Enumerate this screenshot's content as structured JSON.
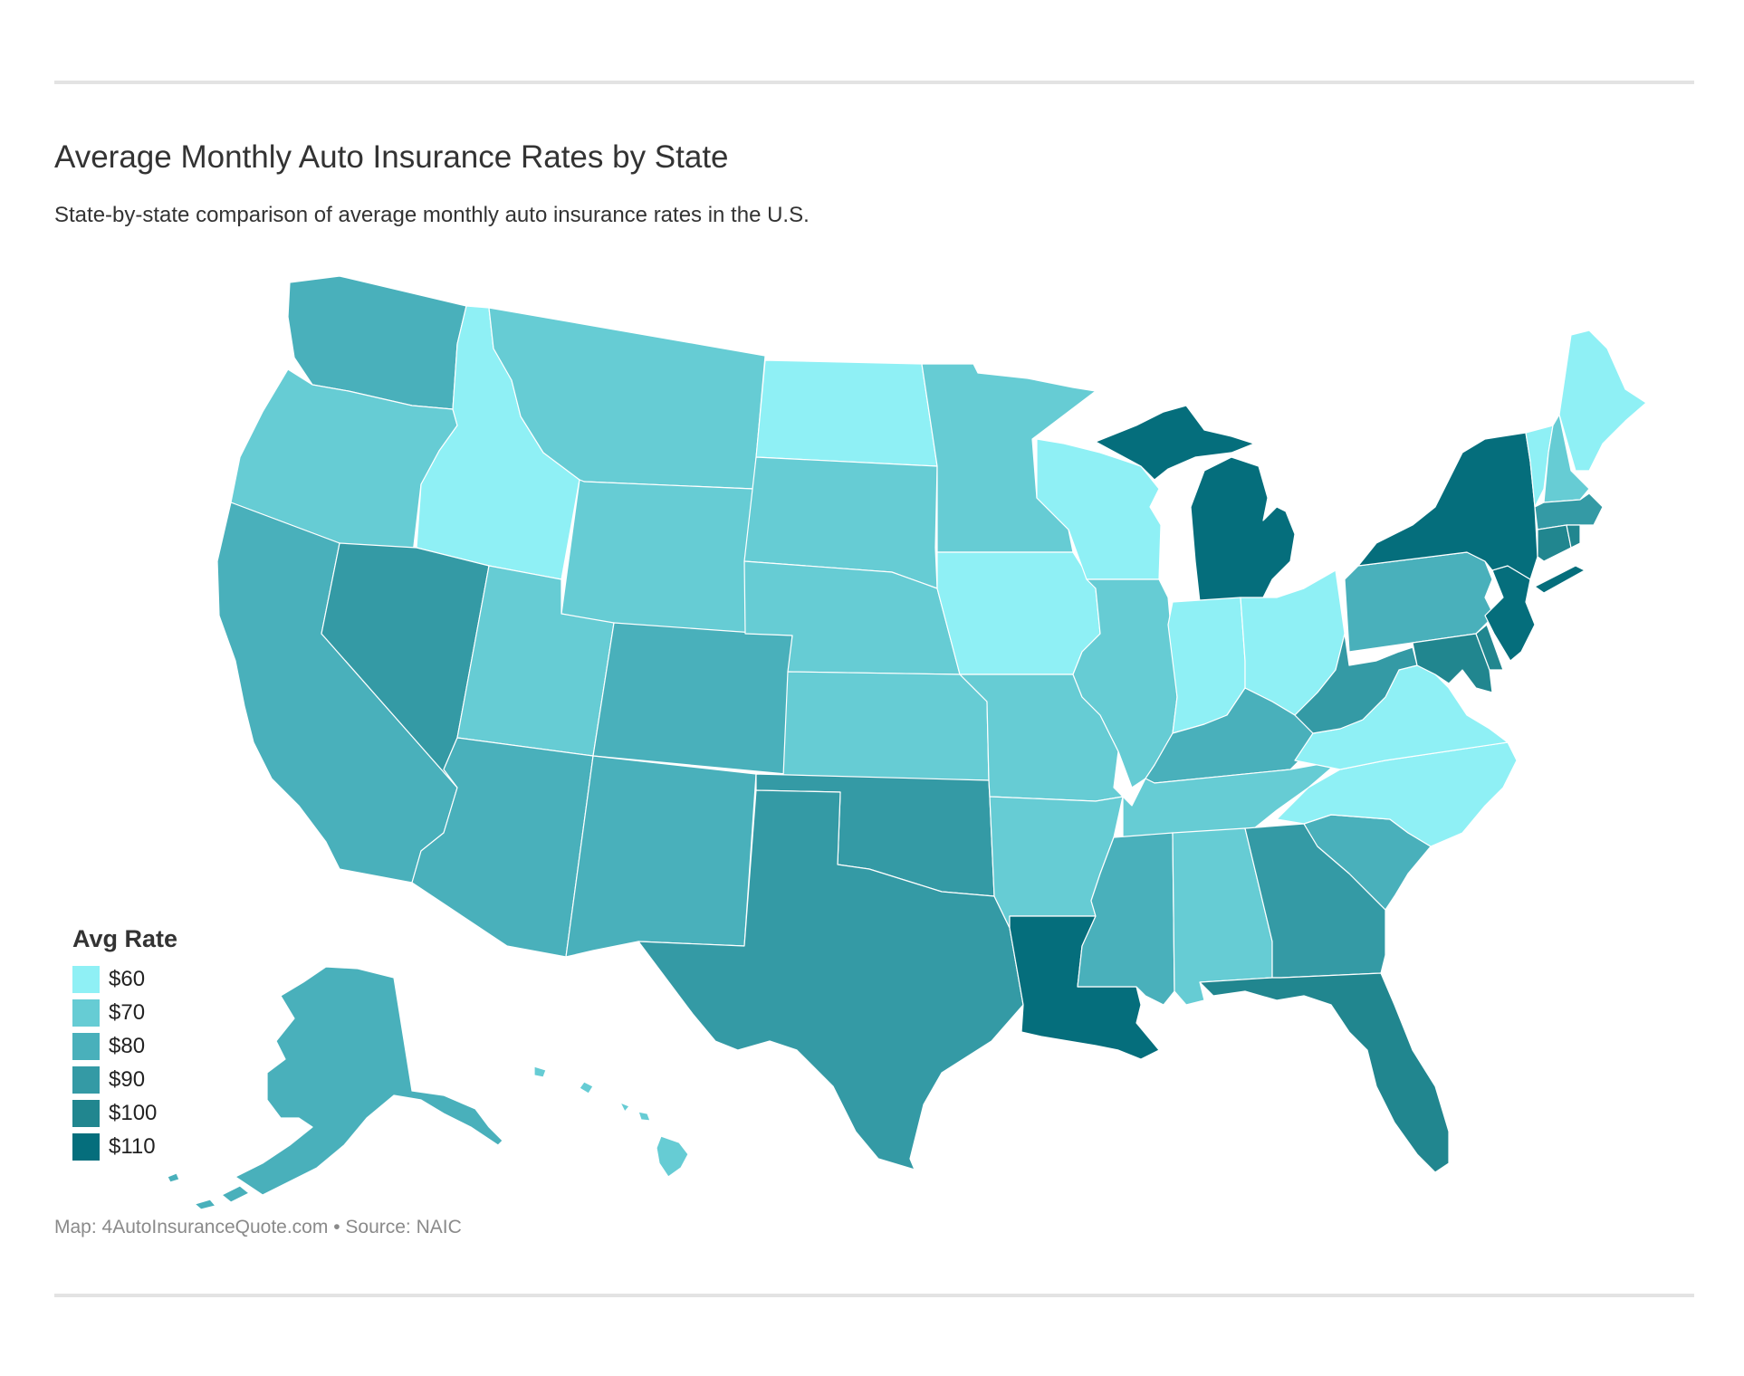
{
  "title": "Average Monthly Auto Insurance Rates by State",
  "subtitle": "State-by-state comparison of average monthly auto insurance rates in the U.S.",
  "legend": {
    "title": "Avg Rate",
    "items": [
      {
        "label": "$60",
        "color": "#8ff0f5"
      },
      {
        "label": "$70",
        "color": "#66ccd4"
      },
      {
        "label": "$80",
        "color": "#49b0bb"
      },
      {
        "label": "$90",
        "color": "#349aa5"
      },
      {
        "label": "$100",
        "color": "#21868f"
      },
      {
        "label": "$110",
        "color": "#056e7c"
      }
    ]
  },
  "source": {
    "credit": "Map: 4AutoInsuranceQuote.com",
    "separator": "•",
    "text": "Source: NAIC"
  },
  "chart_data": {
    "type": "choropleth",
    "title": "Average Monthly Auto Insurance Rates by State",
    "subtitle": "State-by-state comparison of average monthly auto insurance rates in the U.S.",
    "legend_title": "Avg Rate",
    "legend_position": "bottom-left",
    "bins": [
      "$60",
      "$70",
      "$80",
      "$90",
      "$100",
      "$110"
    ],
    "states": [
      {
        "state": "Washington",
        "bin": "$80"
      },
      {
        "state": "Oregon",
        "bin": "$70"
      },
      {
        "state": "California",
        "bin": "$80"
      },
      {
        "state": "Idaho",
        "bin": "$60"
      },
      {
        "state": "Nevada",
        "bin": "$90"
      },
      {
        "state": "Montana",
        "bin": "$70"
      },
      {
        "state": "Wyoming",
        "bin": "$70"
      },
      {
        "state": "Utah",
        "bin": "$70"
      },
      {
        "state": "Arizona",
        "bin": "$80"
      },
      {
        "state": "Colorado",
        "bin": "$80"
      },
      {
        "state": "New Mexico",
        "bin": "$80"
      },
      {
        "state": "North Dakota",
        "bin": "$60"
      },
      {
        "state": "South Dakota",
        "bin": "$70"
      },
      {
        "state": "Nebraska",
        "bin": "$70"
      },
      {
        "state": "Kansas",
        "bin": "$70"
      },
      {
        "state": "Oklahoma",
        "bin": "$90"
      },
      {
        "state": "Texas",
        "bin": "$90"
      },
      {
        "state": "Minnesota",
        "bin": "$70"
      },
      {
        "state": "Iowa",
        "bin": "$60"
      },
      {
        "state": "Missouri",
        "bin": "$70"
      },
      {
        "state": "Arkansas",
        "bin": "$70"
      },
      {
        "state": "Louisiana",
        "bin": "$110"
      },
      {
        "state": "Wisconsin",
        "bin": "$60"
      },
      {
        "state": "Illinois",
        "bin": "$70"
      },
      {
        "state": "Michigan",
        "bin": "$110"
      },
      {
        "state": "Indiana",
        "bin": "$60"
      },
      {
        "state": "Ohio",
        "bin": "$60"
      },
      {
        "state": "Kentucky",
        "bin": "$80"
      },
      {
        "state": "Tennessee",
        "bin": "$70"
      },
      {
        "state": "Mississippi",
        "bin": "$80"
      },
      {
        "state": "Alabama",
        "bin": "$70"
      },
      {
        "state": "Georgia",
        "bin": "$90"
      },
      {
        "state": "Florida",
        "bin": "$100"
      },
      {
        "state": "South Carolina",
        "bin": "$80"
      },
      {
        "state": "North Carolina",
        "bin": "$60"
      },
      {
        "state": "Virginia",
        "bin": "$60"
      },
      {
        "state": "West Virginia",
        "bin": "$90"
      },
      {
        "state": "Pennsylvania",
        "bin": "$80"
      },
      {
        "state": "New York",
        "bin": "$110"
      },
      {
        "state": "Vermont",
        "bin": "$60"
      },
      {
        "state": "New Hampshire",
        "bin": "$70"
      },
      {
        "state": "Maine",
        "bin": "$60"
      },
      {
        "state": "Massachusetts",
        "bin": "$90"
      },
      {
        "state": "Rhode Island",
        "bin": "$100"
      },
      {
        "state": "Connecticut",
        "bin": "$100"
      },
      {
        "state": "New Jersey",
        "bin": "$110"
      },
      {
        "state": "Delaware",
        "bin": "$100"
      },
      {
        "state": "Maryland",
        "bin": "$100"
      },
      {
        "state": "Alaska",
        "bin": "$80"
      },
      {
        "state": "Hawaii",
        "bin": "$70"
      }
    ]
  }
}
